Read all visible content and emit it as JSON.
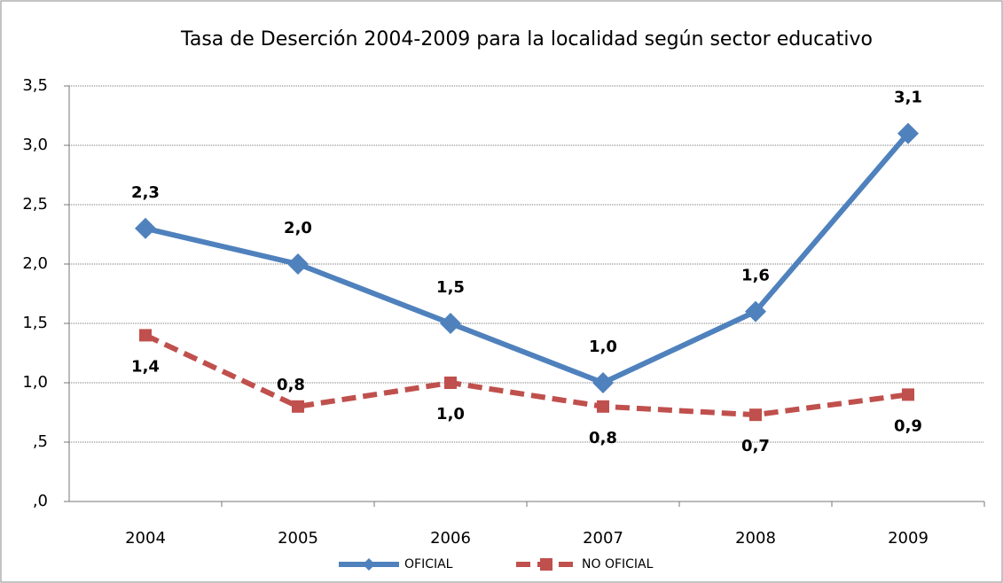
{
  "chart_data": {
    "type": "line",
    "title": "Tasa de Deserción 2004-2009 para la localidad según sector educativo",
    "categories": [
      "2004",
      "2005",
      "2006",
      "2007",
      "2008",
      "2009"
    ],
    "series": [
      {
        "name": "OFICIAL",
        "color": "#4f81bd",
        "values": [
          2.3,
          2.0,
          1.5,
          1.0,
          1.6,
          3.1
        ],
        "value_labels": [
          "2,3",
          "2,0",
          "1,5",
          "1,0",
          "1,6",
          "3,1"
        ]
      },
      {
        "name": "NO OFICIAL",
        "color": "#c0504d",
        "dashed": true,
        "values": [
          1.4,
          0.8,
          1.0,
          0.8,
          0.73,
          0.9
        ],
        "value_labels": [
          "1,4",
          "0,8",
          "1,0",
          "0,8",
          "0,7",
          "0,9"
        ]
      }
    ],
    "ylim": [
      0,
      3.5
    ],
    "yticks": [
      {
        "value": 0,
        "label": ",0"
      },
      {
        "value": 0.5,
        "label": ",5"
      },
      {
        "value": 1,
        "label": "1,0"
      },
      {
        "value": 1.5,
        "label": "1,5"
      },
      {
        "value": 2,
        "label": "2,0"
      },
      {
        "value": 2.5,
        "label": "2,5"
      },
      {
        "value": 3,
        "label": "3,0"
      },
      {
        "value": 3.5,
        "label": "3,5"
      }
    ],
    "grid": true,
    "legend": "bottom"
  }
}
